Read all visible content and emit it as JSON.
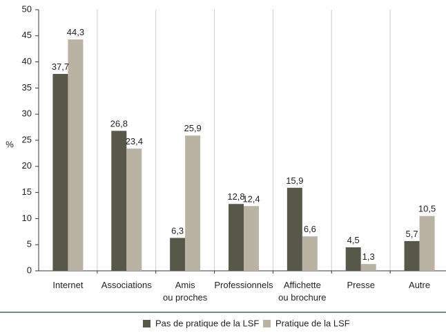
{
  "chart_data": {
    "type": "bar",
    "ylabel": "%",
    "ylim": [
      0,
      50
    ],
    "yticks": [
      "0",
      "5",
      "10",
      "15",
      "20",
      "25",
      "30",
      "35",
      "40",
      "45",
      "50"
    ],
    "categories": [
      [
        "Internet"
      ],
      [
        "Associations"
      ],
      [
        "Amis",
        "ou proches"
      ],
      [
        "Professionnels"
      ],
      [
        "Affichette",
        "ou brochure"
      ],
      [
        "Presse"
      ],
      [
        "Autre"
      ]
    ],
    "series": [
      {
        "name": "Pas de pratique de la LSF",
        "color": "#57574a",
        "values": [
          37.7,
          26.8,
          6.3,
          12.8,
          15.9,
          4.5,
          5.7
        ],
        "labels": [
          "37,7",
          "26,8",
          "6,3",
          "12,8",
          "15,9",
          "4,5",
          "5,7"
        ]
      },
      {
        "name": "Pratique de la LSF",
        "color": "#bab3a4",
        "values": [
          44.3,
          23.4,
          25.9,
          12.4,
          6.6,
          1.3,
          10.5
        ],
        "labels": [
          "44,3",
          "23,4",
          "25,9",
          "12,4",
          "6,6",
          "1,3",
          "10,5"
        ]
      }
    ],
    "gridlines": "vertical separators between categories",
    "legend_position": "bottom-center",
    "separator_color": "#6e8f80",
    "axis_color": "#333333",
    "grid_color": "#cccccc"
  }
}
